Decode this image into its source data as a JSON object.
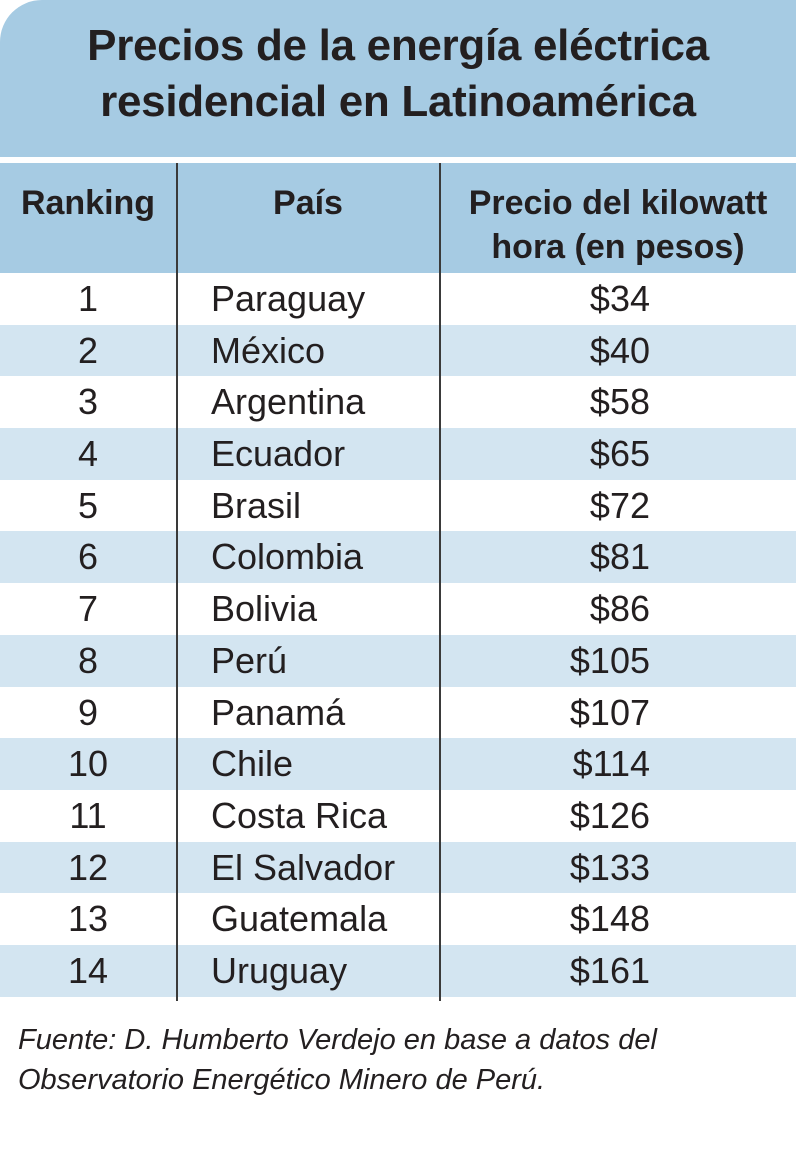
{
  "title": {
    "line1": "Precios de la energía eléctrica",
    "line2": "residencial en Latinoamérica"
  },
  "table": {
    "headers": {
      "rank": "Ranking",
      "country": "País",
      "price_line1": "Precio del kilowatt",
      "price_line2": "hora (en pesos)"
    },
    "rows": [
      {
        "rank": "1",
        "country": "Paraguay",
        "price": "$34"
      },
      {
        "rank": "2",
        "country": "México",
        "price": "$40"
      },
      {
        "rank": "3",
        "country": "Argentina",
        "price": "$58"
      },
      {
        "rank": "4",
        "country": "Ecuador",
        "price": "$65"
      },
      {
        "rank": "5",
        "country": "Brasil",
        "price": "$72"
      },
      {
        "rank": "6",
        "country": "Colombia",
        "price": "$81"
      },
      {
        "rank": "7",
        "country": "Bolivia",
        "price": "$86"
      },
      {
        "rank": "8",
        "country": "Perú",
        "price": "$105"
      },
      {
        "rank": "9",
        "country": "Panamá",
        "price": "$107"
      },
      {
        "rank": "10",
        "country": "Chile",
        "price": "$114"
      },
      {
        "rank": "11",
        "country": "Costa Rica",
        "price": "$126"
      },
      {
        "rank": "12",
        "country": "El Salvador",
        "price": "$133"
      },
      {
        "rank": "13",
        "country": "Guatemala",
        "price": "$148"
      },
      {
        "rank": "14",
        "country": "Uruguay",
        "price": "$161"
      }
    ]
  },
  "source": {
    "line1": "Fuente: D. Humberto Verdejo en base a datos del",
    "line2": "Observatorio Energético Minero de Perú."
  },
  "colors": {
    "header_bg": "#a6cbe3",
    "alt_row_bg": "#d3e5f1",
    "text": "#231f20"
  }
}
